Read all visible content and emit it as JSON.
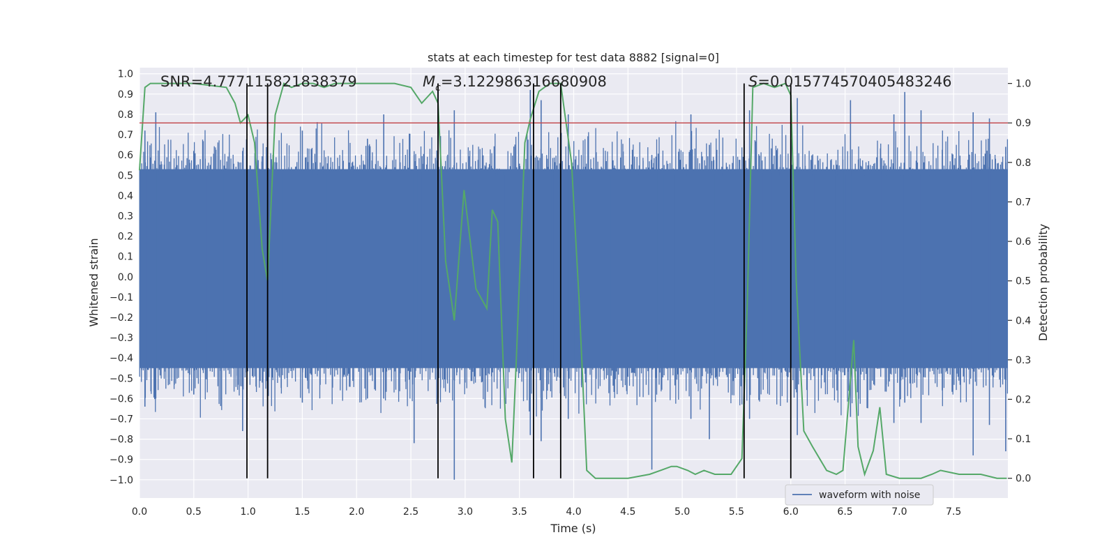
{
  "chart_data": {
    "type": "line",
    "title": "stats at each timestep for test data 8882 [signal=0]",
    "xlabel": "Time (s)",
    "ylabel_left": "Whitened strain",
    "ylabel_right": "Detection probability",
    "xlim": [
      0.0,
      8.0
    ],
    "ylim_left": [
      -1.09,
      1.03
    ],
    "ylim_right": [
      -0.05,
      1.04
    ],
    "x_ticks": [
      "0.0",
      "0.5",
      "1.0",
      "1.5",
      "2.0",
      "2.5",
      "3.0",
      "3.5",
      "4.0",
      "4.5",
      "5.0",
      "5.5",
      "6.0",
      "6.5",
      "7.0",
      "7.5"
    ],
    "x_tick_values": [
      0.0,
      0.5,
      1.0,
      1.5,
      2.0,
      2.5,
      3.0,
      3.5,
      4.0,
      4.5,
      5.0,
      5.5,
      6.0,
      6.5,
      7.0,
      7.5
    ],
    "y_left_ticks": [
      "1.0",
      "0.9",
      "0.8",
      "0.7",
      "0.6",
      "0.5",
      "0.4",
      "0.3",
      "0.2",
      "0.1",
      "0.0",
      "−0.1",
      "−0.2",
      "−0.3",
      "−0.4",
      "−0.5",
      "−0.6",
      "−0.7",
      "−0.8",
      "−0.9",
      "−1.0"
    ],
    "y_left_tick_values": [
      1.0,
      0.9,
      0.8,
      0.7,
      0.6,
      0.5,
      0.4,
      0.3,
      0.2,
      0.1,
      0.0,
      -0.1,
      -0.2,
      -0.3,
      -0.4,
      -0.5,
      -0.6,
      -0.7,
      -0.8,
      -0.9,
      -1.0
    ],
    "y_right_ticks": [
      "1.0",
      "0.9",
      "0.8",
      "0.7",
      "0.6",
      "0.5",
      "0.4",
      "0.3",
      "0.2",
      "0.1",
      "0.0"
    ],
    "y_right_tick_values": [
      1.0,
      0.9,
      0.8,
      0.7,
      0.6,
      0.5,
      0.4,
      0.3,
      0.2,
      0.1,
      0.0
    ],
    "grid": true,
    "legend": {
      "position": "lower-right",
      "entries": [
        "waveform with noise"
      ]
    },
    "annotations": {
      "snr": "SNR=4.777115821838379",
      "mc_symbol": "M",
      "mc_sub": "c",
      "mc_value": "=3.122986316680908",
      "s_symbol": "S",
      "s_value": "=0.015774570405483246"
    },
    "threshold": {
      "value": 0.9,
      "axis": "right",
      "color": "#c44e52"
    },
    "vertical_lines": [
      0.99,
      1.18,
      2.75,
      3.63,
      3.88,
      5.57,
      6.0
    ],
    "series": [
      {
        "name": "waveform with noise",
        "axis": "left",
        "color": "#4c72b0",
        "kind": "noise",
        "dense_band": [
          -0.45,
          0.53
        ],
        "peaks": [
          [
            0.05,
            0.72,
            -0.64
          ],
          [
            0.15,
            0.81,
            -0.6
          ],
          [
            0.5,
            0.62,
            -0.58
          ],
          [
            0.95,
            0.62,
            -0.76
          ],
          [
            0.99,
            0.6,
            -0.8
          ],
          [
            1.18,
            0.68,
            -0.81
          ],
          [
            1.5,
            0.72,
            -0.62
          ],
          [
            2.1,
            0.68,
            -0.6
          ],
          [
            2.25,
            0.8,
            -0.6
          ],
          [
            2.53,
            0.6,
            -0.82
          ],
          [
            2.75,
            0.92,
            -0.6
          ],
          [
            2.9,
            0.82,
            -1.0
          ],
          [
            3.6,
            0.92,
            -0.78
          ],
          [
            3.7,
            0.87,
            -0.81
          ],
          [
            3.95,
            0.8,
            -0.7
          ],
          [
            4.72,
            0.6,
            -0.95
          ],
          [
            5.08,
            0.8,
            -0.7
          ],
          [
            5.25,
            0.65,
            -0.8
          ],
          [
            5.62,
            0.82,
            -0.7
          ],
          [
            6.06,
            0.88,
            -0.78
          ],
          [
            6.55,
            0.87,
            -0.69
          ],
          [
            6.95,
            0.8,
            -0.72
          ],
          [
            7.05,
            0.91,
            -0.62
          ],
          [
            7.2,
            0.82,
            -0.72
          ],
          [
            7.68,
            0.81,
            -0.88
          ],
          [
            7.83,
            0.78,
            -0.73
          ],
          [
            7.98,
            0.64,
            -0.86
          ]
        ]
      },
      {
        "name": "detection probability",
        "axis": "right",
        "color": "#55a868",
        "x": [
          0.0,
          0.05,
          0.1,
          0.2,
          0.3,
          0.5,
          0.8,
          0.88,
          0.93,
          1.0,
          1.06,
          1.13,
          1.18,
          1.25,
          1.33,
          1.4,
          1.5,
          1.6,
          1.7,
          1.8,
          1.9,
          2.0,
          2.2,
          2.35,
          2.5,
          2.6,
          2.7,
          2.75,
          2.82,
          2.9,
          2.99,
          3.1,
          3.2,
          3.25,
          3.3,
          3.37,
          3.43,
          3.47,
          3.55,
          3.6,
          3.68,
          3.78,
          3.88,
          3.98,
          4.05,
          4.12,
          4.2,
          4.3,
          4.5,
          4.7,
          4.8,
          4.9,
          4.95,
          5.05,
          5.12,
          5.2,
          5.3,
          5.45,
          5.55,
          5.6,
          5.65,
          5.75,
          5.85,
          5.95,
          6.0,
          6.05,
          6.12,
          6.2,
          6.33,
          6.42,
          6.48,
          6.58,
          6.62,
          6.68,
          6.76,
          6.82,
          6.88,
          7.0,
          7.2,
          7.3,
          7.38,
          7.55,
          7.65,
          7.75,
          7.9,
          7.99
        ],
        "y": [
          0.78,
          0.99,
          1.0,
          1.0,
          1.0,
          1.0,
          0.99,
          0.95,
          0.9,
          0.92,
          0.85,
          0.58,
          0.5,
          0.92,
          1.0,
          0.99,
          1.0,
          1.0,
          0.99,
          1.0,
          1.0,
          1.0,
          1.0,
          1.0,
          0.99,
          0.95,
          0.98,
          0.95,
          0.55,
          0.4,
          0.73,
          0.48,
          0.43,
          0.68,
          0.65,
          0.15,
          0.04,
          0.29,
          0.85,
          0.91,
          0.98,
          1.0,
          1.0,
          0.8,
          0.45,
          0.02,
          0.0,
          0.0,
          0.0,
          0.01,
          0.02,
          0.03,
          0.03,
          0.02,
          0.01,
          0.02,
          0.01,
          0.01,
          0.05,
          0.45,
          0.99,
          1.0,
          0.99,
          1.0,
          0.97,
          0.5,
          0.12,
          0.08,
          0.02,
          0.01,
          0.02,
          0.35,
          0.08,
          0.01,
          0.07,
          0.18,
          0.01,
          0.0,
          0.0,
          0.01,
          0.02,
          0.01,
          0.01,
          0.01,
          0.0,
          0.0
        ]
      }
    ]
  }
}
